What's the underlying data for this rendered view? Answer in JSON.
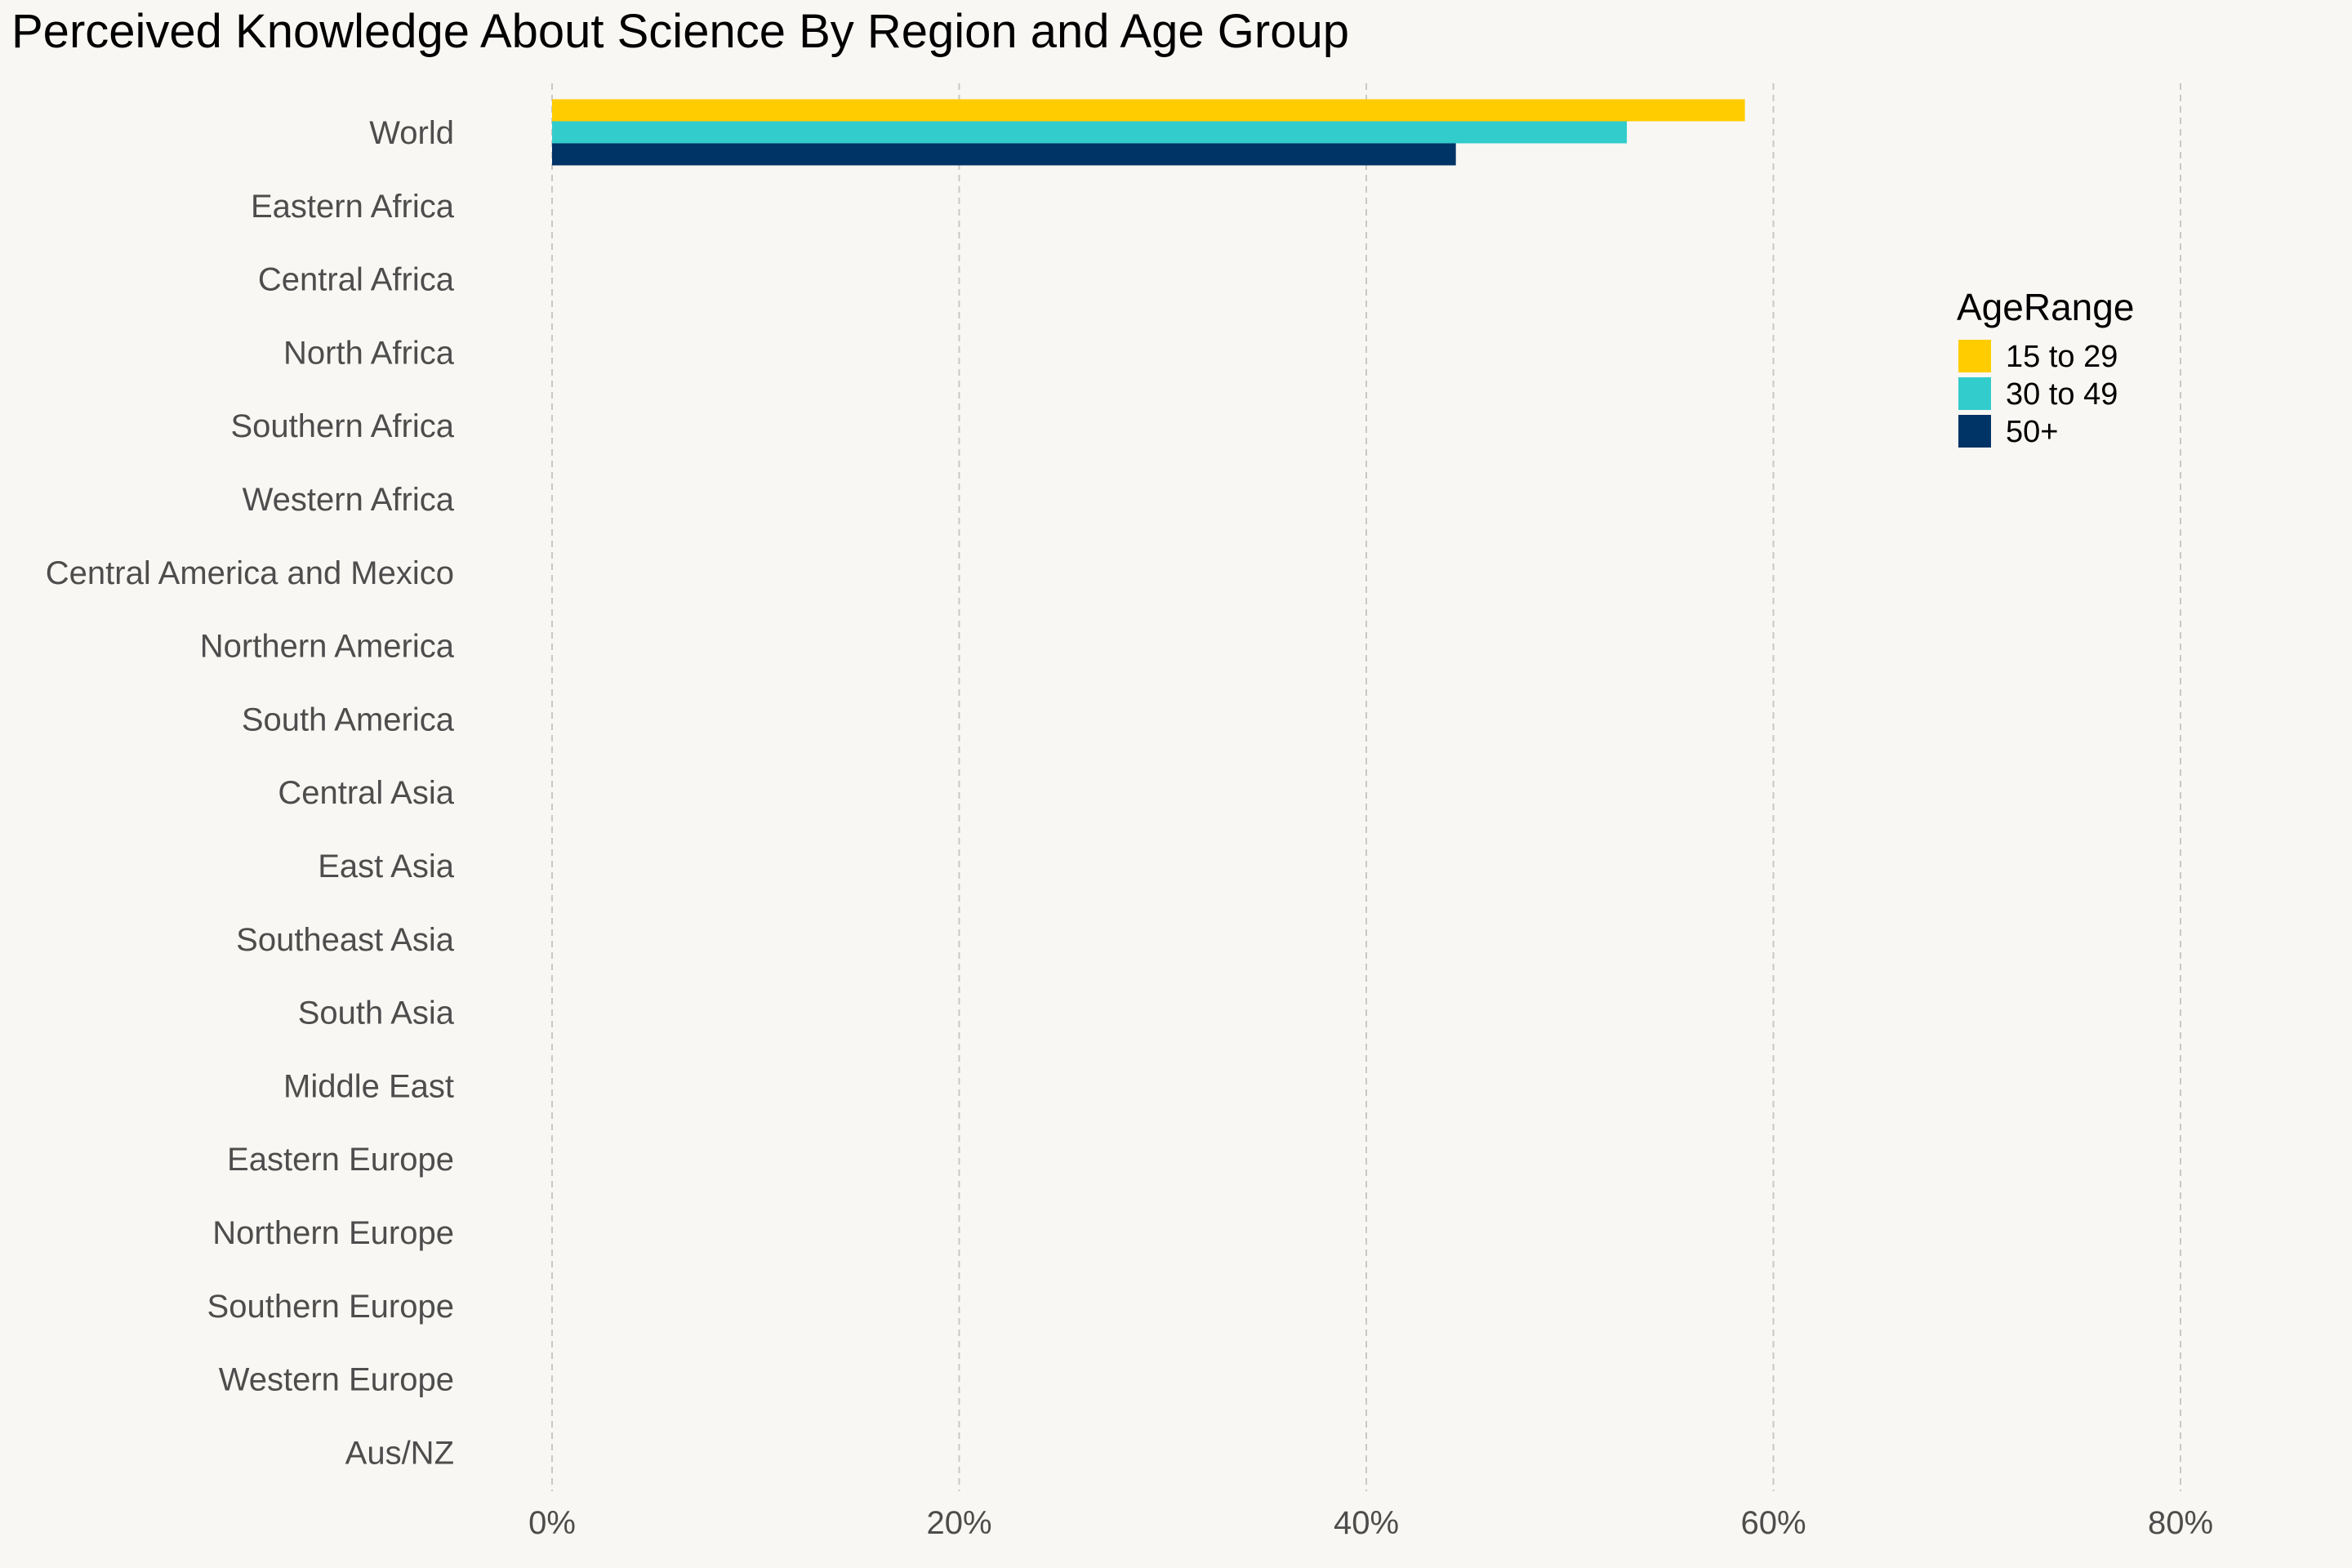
{
  "chart_data": {
    "type": "bar",
    "orientation": "horizontal",
    "title": "Perceived Knowledge About Science By Region and Age Group",
    "xlabel": "",
    "ylabel": "",
    "xlim": [
      0,
      80
    ],
    "x_ticks": [
      0,
      20,
      40,
      60,
      80
    ],
    "x_tick_labels": [
      "0%",
      "20%",
      "40%",
      "60%",
      "80%"
    ],
    "grid": "vertical dashed",
    "categories": [
      "World",
      "Eastern Africa",
      "Central Africa",
      "North Africa",
      "Southern Africa",
      "Western Africa",
      "Central America and Mexico",
      "Northern America",
      "South America",
      "Central Asia",
      "East Asia",
      "Southeast Asia",
      "South Asia",
      "Middle East",
      "Eastern Europe",
      "Northern Europe",
      "Southern Europe",
      "Western Europe",
      "Aus/NZ"
    ],
    "series": [
      {
        "name": "15 to 29",
        "color": "#ffcc00",
        "values": [
          58.6,
          null,
          null,
          null,
          null,
          null,
          null,
          null,
          null,
          null,
          null,
          null,
          null,
          null,
          null,
          null,
          null,
          null,
          null
        ]
      },
      {
        "name": "30 to 49",
        "color": "#33cccc",
        "values": [
          52.8,
          null,
          null,
          null,
          null,
          null,
          null,
          null,
          null,
          null,
          null,
          null,
          null,
          null,
          null,
          null,
          null,
          null,
          null
        ]
      },
      {
        "name": "50+",
        "color": "#003366",
        "values": [
          44.4,
          null,
          null,
          null,
          null,
          null,
          null,
          null,
          null,
          null,
          null,
          null,
          null,
          null,
          null,
          null,
          null,
          null,
          null
        ]
      }
    ],
    "legend": {
      "title": "AgeRange",
      "position": "top-right"
    },
    "colors": {
      "background": "#f9f7f3",
      "text": "#4d4d4d",
      "grid": "#c8c8c8"
    }
  }
}
